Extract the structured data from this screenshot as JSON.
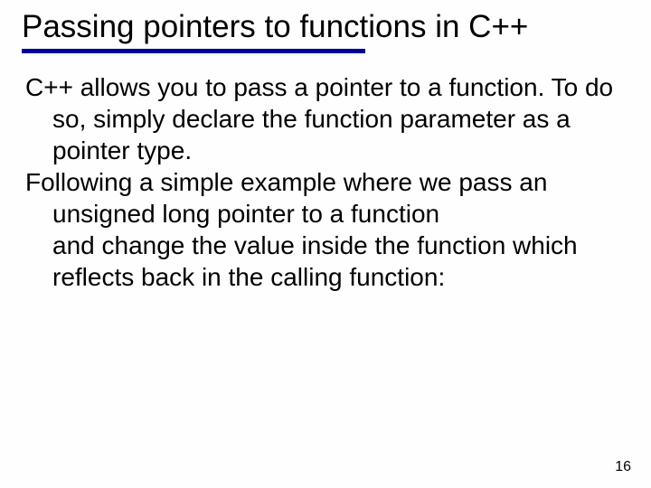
{
  "slide": {
    "title": "Passing pointers to functions in C++",
    "background_color": "#fefefe",
    "text_color": "#000000",
    "underline_color": "#000099",
    "font_family": "Comic Sans MS",
    "title_fontsize": 35,
    "body_fontsize": 28,
    "paragraphs": [
      "C++ allows you to pass a pointer to a function. To do so, simply declare the function parameter as a pointer type.",
      "Following a simple example where we pass an unsigned long pointer to a function",
      "and change the value inside the function which reflects back in the calling function:"
    ],
    "page_number": "16"
  }
}
